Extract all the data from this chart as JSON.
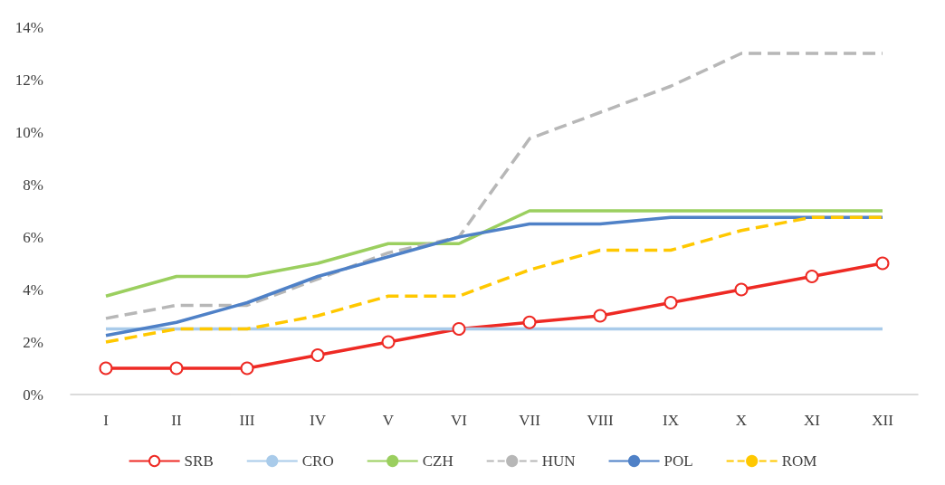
{
  "chart_data": {
    "type": "line",
    "categories": [
      "I",
      "II",
      "III",
      "IV",
      "V",
      "VI",
      "VII",
      "VIII",
      "IX",
      "X",
      "XI",
      "XII"
    ],
    "ylim": [
      0,
      14
    ],
    "yticks": [
      {
        "value": 0,
        "label": "0%"
      },
      {
        "value": 2,
        "label": "2%"
      },
      {
        "value": 4,
        "label": "4%"
      },
      {
        "value": 6,
        "label": "6%"
      },
      {
        "value": 8,
        "label": "8%"
      },
      {
        "value": 10,
        "label": "10%"
      },
      {
        "value": 12,
        "label": "12%"
      },
      {
        "value": 14,
        "label": "14%"
      }
    ],
    "grid": false,
    "legend": "bottom",
    "series": [
      {
        "name": "SRB",
        "color": "#ee2a24",
        "marker": "circle",
        "line_style": "solid",
        "values": [
          1,
          1,
          1,
          1.5,
          2,
          2.5,
          2.75,
          3,
          3.5,
          4,
          4.5,
          5
        ]
      },
      {
        "name": "CRO",
        "color": "#a9cbea",
        "marker": "none",
        "line_style": "solid",
        "values": [
          2.5,
          2.5,
          2.5,
          2.5,
          2.5,
          2.5,
          2.5,
          2.5,
          2.5,
          2.5,
          2.5,
          2.5
        ]
      },
      {
        "name": "CZH",
        "color": "#9bcf5f",
        "marker": "none",
        "line_style": "solid",
        "values": [
          3.75,
          4.5,
          4.5,
          5,
          5.75,
          5.75,
          7,
          7,
          7,
          7,
          7,
          7
        ]
      },
      {
        "name": "HUN",
        "color": "#b7b7b7",
        "marker": "none",
        "line_style": "dashed",
        "values": [
          2.9,
          3.4,
          3.4,
          4.4,
          5.4,
          6,
          9.75,
          10.75,
          11.75,
          13,
          13,
          13
        ]
      },
      {
        "name": "POL",
        "color": "#4f81c7",
        "marker": "none",
        "line_style": "solid",
        "values": [
          2.25,
          2.75,
          3.5,
          4.5,
          5.25,
          6,
          6.5,
          6.5,
          6.75,
          6.75,
          6.75,
          6.75
        ]
      },
      {
        "name": "ROM",
        "color": "#ffc800",
        "marker": "none",
        "line_style": "dashed",
        "values": [
          2,
          2.5,
          2.5,
          3,
          3.75,
          3.75,
          4.75,
          5.5,
          5.5,
          6.25,
          6.75,
          6.75
        ]
      }
    ]
  }
}
